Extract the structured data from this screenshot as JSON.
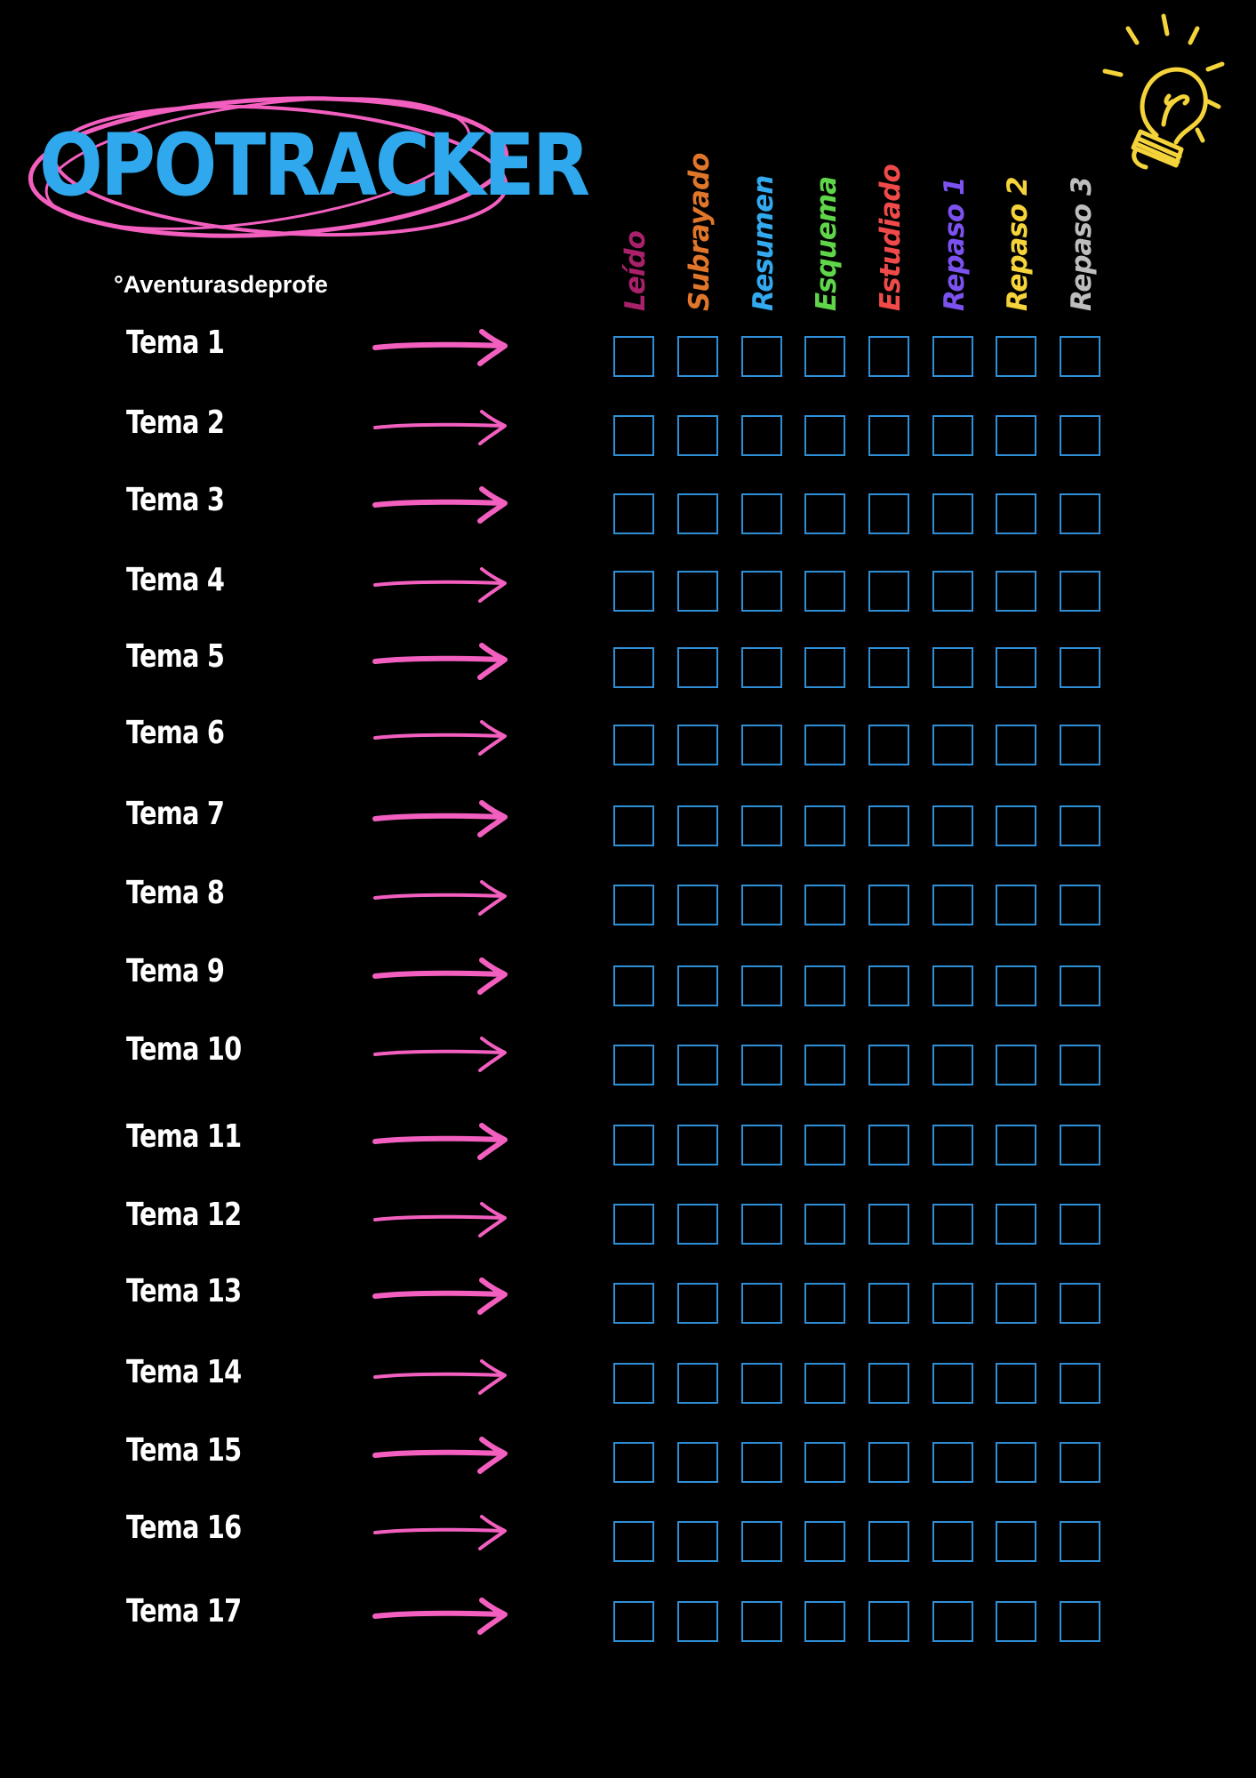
{
  "header": {
    "title": "OPOTRACKER",
    "handle": "°Aventurasdeprofe",
    "title_color": "#2fa8ee",
    "scribble_color": "#f25fbf",
    "bulb_icon": "lightbulb-icon",
    "bulb_color": "#f5d33a"
  },
  "columns": [
    {
      "label": "Leído",
      "color": "#a8216a"
    },
    {
      "label": "Subrayado",
      "color": "#e0762a"
    },
    {
      "label": "Resumen",
      "color": "#33a9f0"
    },
    {
      "label": "Esquema",
      "color": "#5fd64a"
    },
    {
      "label": "Estudiado",
      "color": "#f04a4a"
    },
    {
      "label": "Repaso 1",
      "color": "#7b52f0"
    },
    {
      "label": "Repaso 2",
      "color": "#f5d33a"
    },
    {
      "label": "Repaso 3",
      "color": "#bdbdbd"
    }
  ],
  "rows": [
    {
      "label": "Tema 1"
    },
    {
      "label": "Tema 2"
    },
    {
      "label": "Tema 3"
    },
    {
      "label": "Tema 4"
    },
    {
      "label": "Tema 5"
    },
    {
      "label": "Tema 6"
    },
    {
      "label": "Tema 7"
    },
    {
      "label": "Tema 8"
    },
    {
      "label": "Tema 9"
    },
    {
      "label": "Tema 10"
    },
    {
      "label": "Tema 11"
    },
    {
      "label": "Tema 12"
    },
    {
      "label": "Tema 13"
    },
    {
      "label": "Tema 14"
    },
    {
      "label": "Tema 15"
    },
    {
      "label": "Tema 16"
    },
    {
      "label": "Tema 17"
    }
  ],
  "arrow_icon": "arrow-right-icon",
  "arrow_color": "#f25fbf",
  "checkbox_color": "#2f8fd6"
}
